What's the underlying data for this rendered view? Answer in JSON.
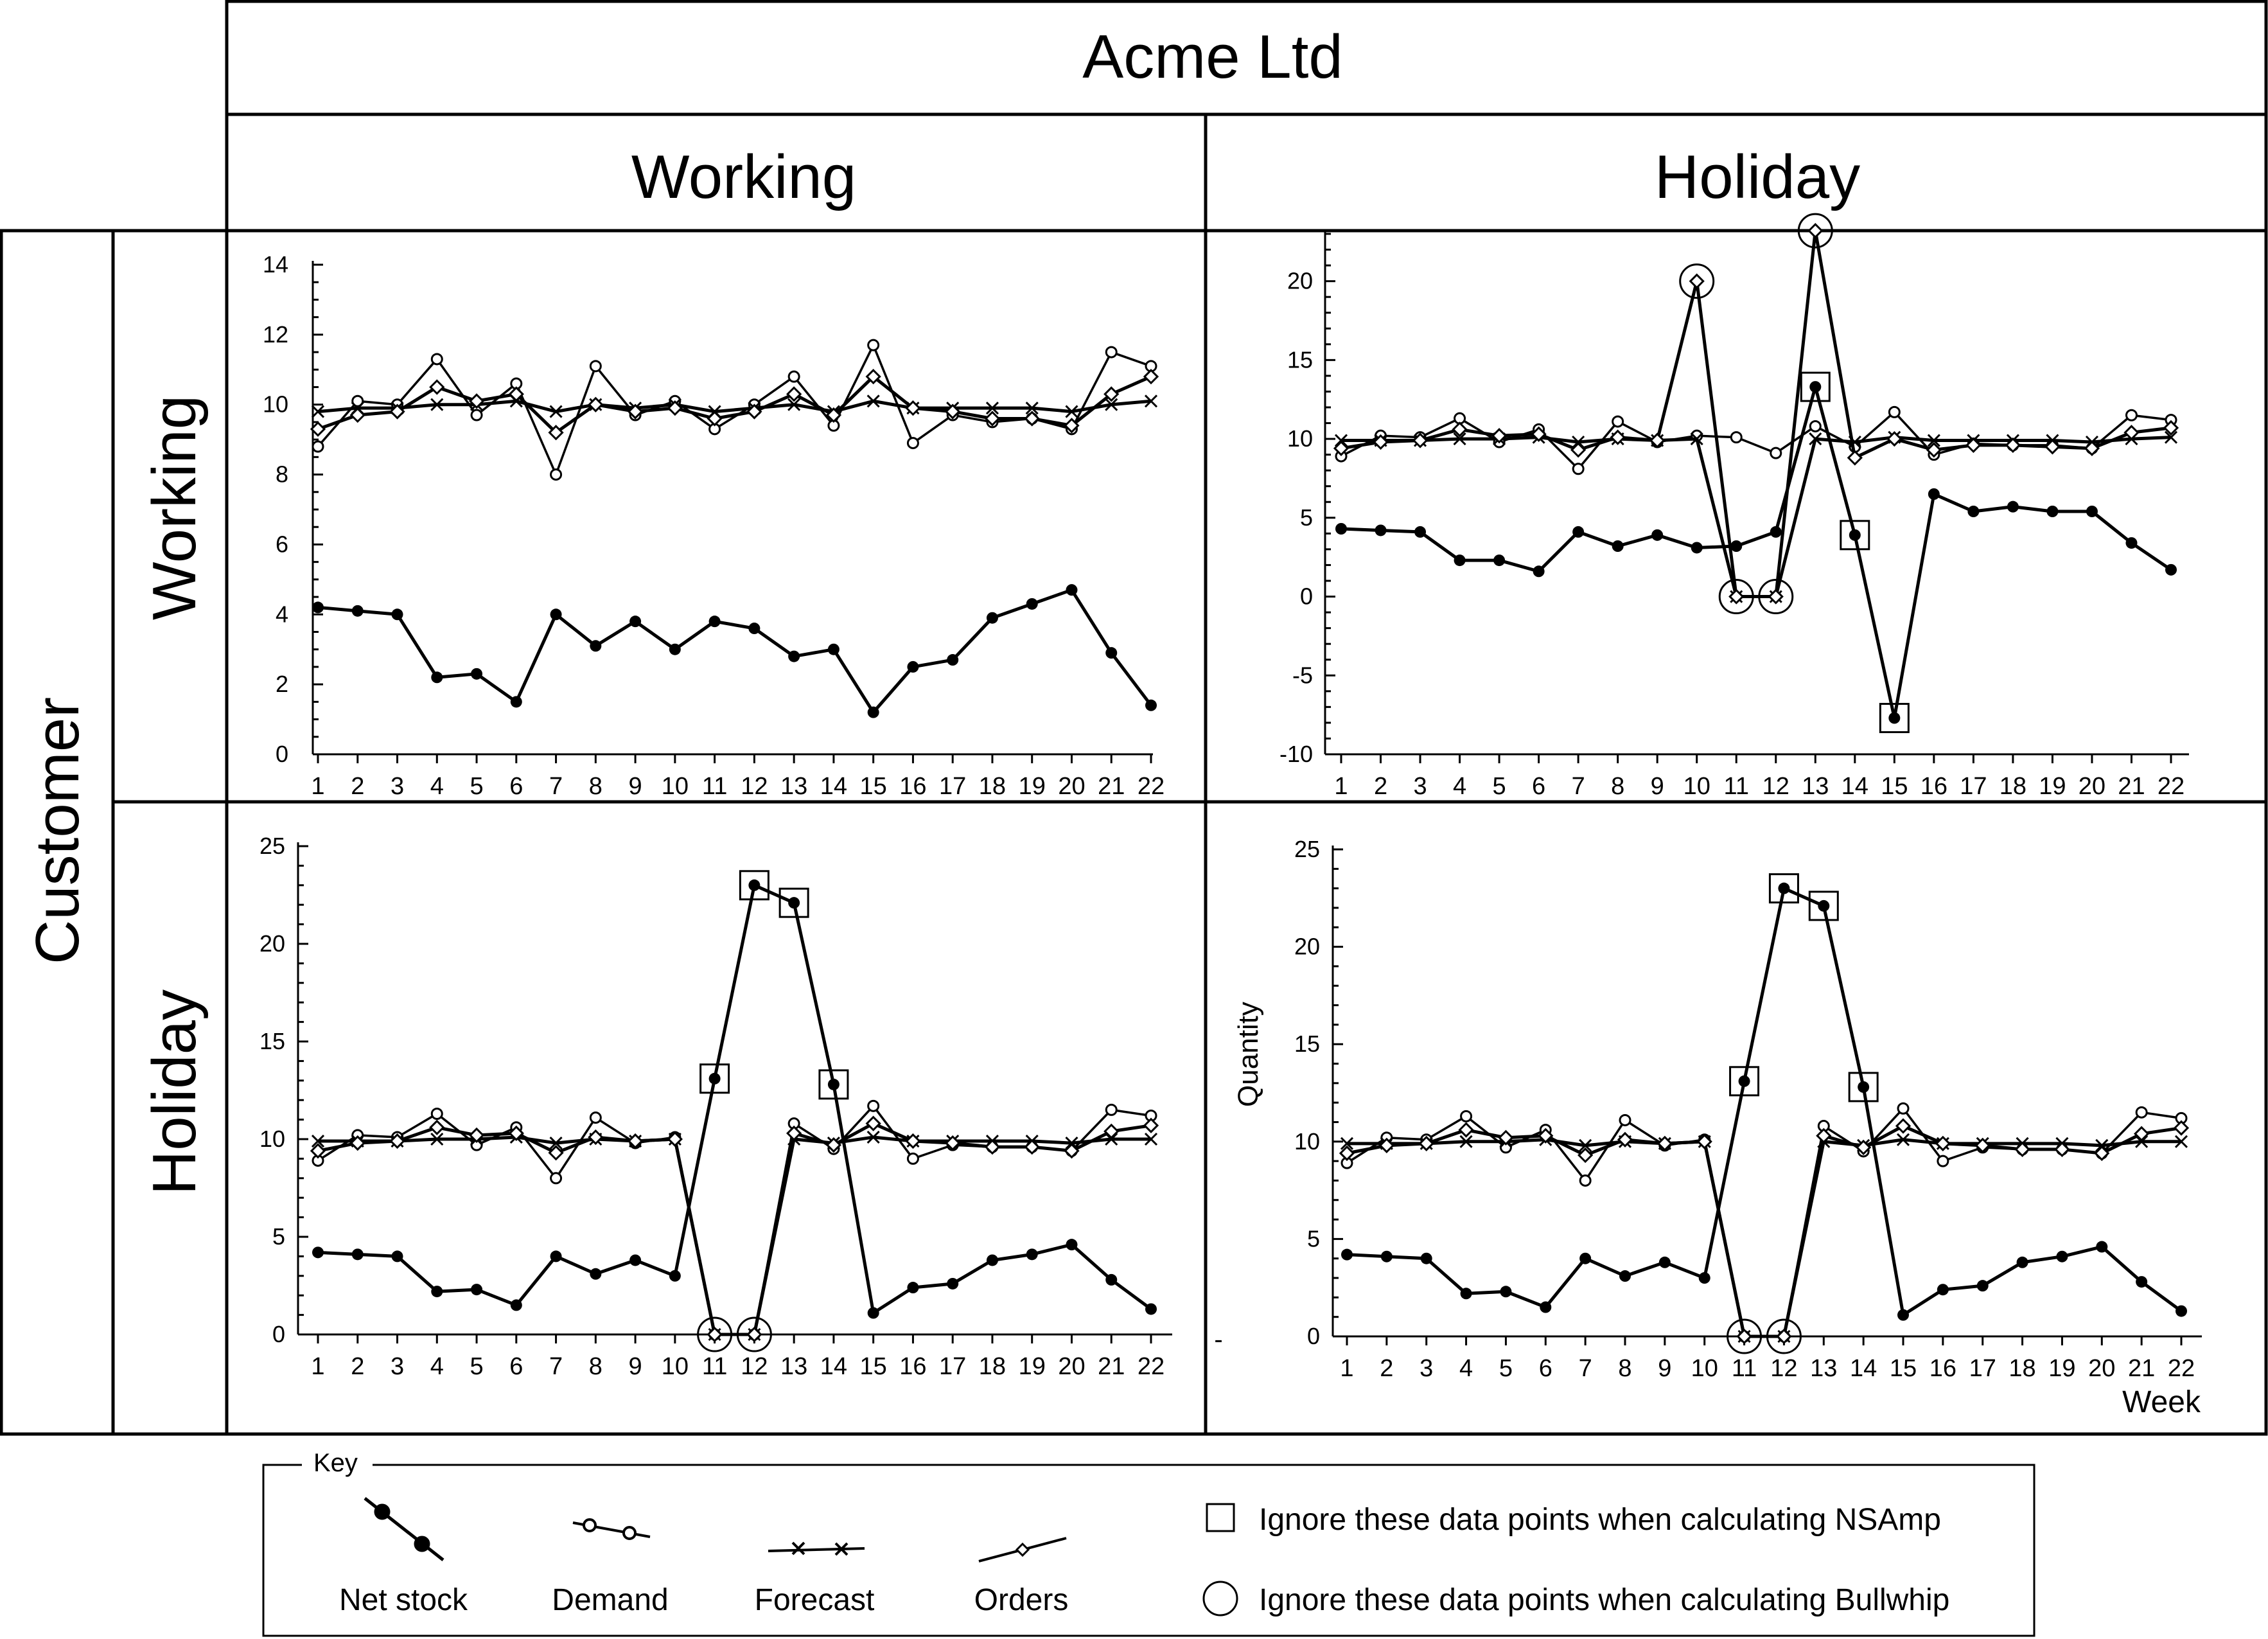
{
  "figure": {
    "company": "Acme Ltd",
    "col_headers": [
      "Working",
      "Holiday"
    ],
    "row_group_label": "Customer",
    "row_headers": [
      "Working",
      "Holiday"
    ],
    "stray_mark": "-"
  },
  "chart_data": [
    {
      "type": "line",
      "title": "Acme Ltd: Working / Customer: Working",
      "xlabel": "",
      "ylabel": "",
      "x": [
        1,
        2,
        3,
        4,
        5,
        6,
        7,
        8,
        9,
        10,
        11,
        12,
        13,
        14,
        15,
        16,
        17,
        18,
        19,
        20,
        21,
        22
      ],
      "ylim": [
        0,
        14
      ],
      "yticks": [
        0,
        2,
        4,
        6,
        8,
        10,
        12,
        14
      ],
      "series": [
        {
          "name": "Net stock",
          "values": [
            4.2,
            4.1,
            4.0,
            2.2,
            2.3,
            1.5,
            4.0,
            3.1,
            3.8,
            3.0,
            3.8,
            3.6,
            2.8,
            3.0,
            1.2,
            2.5,
            2.7,
            3.9,
            4.3,
            4.7,
            2.9,
            1.4
          ]
        },
        {
          "name": "Demand",
          "values": [
            8.8,
            10.1,
            10.0,
            11.3,
            9.7,
            10.6,
            8.0,
            11.1,
            9.7,
            10.1,
            9.3,
            10.0,
            10.8,
            9.4,
            11.7,
            8.9,
            9.7,
            9.5,
            9.6,
            9.3,
            11.5,
            11.1
          ]
        },
        {
          "name": "Forecast",
          "values": [
            9.8,
            9.9,
            9.9,
            10.0,
            10.0,
            10.1,
            9.8,
            10.0,
            9.9,
            10.0,
            9.8,
            9.9,
            10.0,
            9.8,
            10.1,
            9.9,
            9.9,
            9.9,
            9.9,
            9.8,
            10.0,
            10.1
          ]
        },
        {
          "name": "Orders",
          "values": [
            9.3,
            9.7,
            9.8,
            10.5,
            10.1,
            10.3,
            9.2,
            10.0,
            9.8,
            9.9,
            9.6,
            9.8,
            10.3,
            9.7,
            10.8,
            9.9,
            9.8,
            9.6,
            9.6,
            9.4,
            10.3,
            10.8
          ]
        }
      ],
      "squares": [],
      "circles": []
    },
    {
      "type": "line",
      "title": "Acme Ltd: Holiday / Customer: Working",
      "xlabel": "",
      "ylabel": "",
      "x": [
        1,
        2,
        3,
        4,
        5,
        6,
        7,
        8,
        9,
        10,
        11,
        12,
        13,
        14,
        15,
        16,
        17,
        18,
        19,
        20,
        21,
        22
      ],
      "ylim": [
        -10,
        23
      ],
      "yticks": [
        -10,
        -5,
        0,
        5,
        10,
        15,
        20
      ],
      "series": [
        {
          "name": "Net stock",
          "values": [
            4.3,
            4.2,
            4.1,
            2.3,
            2.3,
            1.6,
            4.1,
            3.2,
            3.9,
            3.1,
            3.2,
            4.1,
            13.3,
            3.9,
            -7.7,
            6.5,
            5.4,
            5.7,
            5.4,
            5.4,
            3.4,
            1.7
          ]
        },
        {
          "name": "Demand",
          "values": [
            8.9,
            10.2,
            10.1,
            11.3,
            9.8,
            10.6,
            8.1,
            11.1,
            9.8,
            10.2,
            10.1,
            9.1,
            10.8,
            9.5,
            11.7,
            9.0,
            9.7,
            9.6,
            9.6,
            9.4,
            11.5,
            11.2
          ]
        },
        {
          "name": "Forecast",
          "values": [
            9.9,
            9.9,
            9.9,
            10.0,
            10.0,
            10.1,
            9.8,
            10.0,
            9.9,
            10.0,
            0.0,
            0.0,
            10.0,
            9.8,
            10.1,
            9.9,
            9.9,
            9.9,
            9.9,
            9.8,
            10.0,
            10.1
          ]
        },
        {
          "name": "Orders",
          "values": [
            9.4,
            9.8,
            9.9,
            10.6,
            10.2,
            10.3,
            9.3,
            10.1,
            9.9,
            20.0,
            0.0,
            0.0,
            23.2,
            8.8,
            10.0,
            9.3,
            9.6,
            9.6,
            9.5,
            9.4,
            10.4,
            10.7
          ]
        }
      ],
      "squares": [
        {
          "x": 13,
          "y": 13.3
        },
        {
          "x": 14,
          "y": 3.9
        },
        {
          "x": 15,
          "y": -7.7
        }
      ],
      "circles": [
        {
          "x": 10,
          "y": 20.0
        },
        {
          "x": 11,
          "y": 0
        },
        {
          "x": 12,
          "y": 0
        },
        {
          "x": 13,
          "y": 23.2
        }
      ]
    },
    {
      "type": "line",
      "title": "Acme Ltd: Working / Customer: Holiday",
      "xlabel": "",
      "ylabel": "",
      "x": [
        1,
        2,
        3,
        4,
        5,
        6,
        7,
        8,
        9,
        10,
        11,
        12,
        13,
        14,
        15,
        16,
        17,
        18,
        19,
        20,
        21,
        22
      ],
      "ylim": [
        0,
        25
      ],
      "yticks": [
        0,
        5,
        10,
        15,
        20,
        25
      ],
      "series": [
        {
          "name": "Net stock",
          "values": [
            4.2,
            4.1,
            4.0,
            2.2,
            2.3,
            1.5,
            4.0,
            3.1,
            3.8,
            3.0,
            13.1,
            23.0,
            22.1,
            12.8,
            1.1,
            2.4,
            2.6,
            3.8,
            4.1,
            4.6,
            2.8,
            1.3
          ]
        },
        {
          "name": "Demand",
          "values": [
            8.9,
            10.2,
            10.1,
            11.3,
            9.7,
            10.6,
            8.0,
            11.1,
            9.8,
            10.1,
            0.0,
            0.0,
            10.8,
            9.5,
            11.7,
            9.0,
            9.7,
            9.6,
            9.6,
            9.4,
            11.5,
            11.2
          ]
        },
        {
          "name": "Forecast",
          "values": [
            9.9,
            9.9,
            9.9,
            10.0,
            10.0,
            10.1,
            9.8,
            10.0,
            9.9,
            10.0,
            0.0,
            0.0,
            10.0,
            9.8,
            10.1,
            9.9,
            9.9,
            9.9,
            9.9,
            9.8,
            10.0,
            10.0
          ]
        },
        {
          "name": "Orders",
          "values": [
            9.4,
            9.8,
            9.9,
            10.6,
            10.2,
            10.3,
            9.3,
            10.1,
            9.9,
            10.0,
            0.0,
            0.0,
            10.3,
            9.7,
            10.8,
            9.9,
            9.8,
            9.6,
            9.6,
            9.4,
            10.4,
            10.7
          ]
        }
      ],
      "squares": [
        {
          "x": 11,
          "y": 13.1
        },
        {
          "x": 12,
          "y": 23.0
        },
        {
          "x": 13,
          "y": 22.1
        },
        {
          "x": 14,
          "y": 12.8
        }
      ],
      "circles": [
        {
          "x": 11,
          "y": 0
        },
        {
          "x": 12,
          "y": 0
        }
      ]
    },
    {
      "type": "line",
      "title": "Acme Ltd: Holiday / Customer: Holiday",
      "xlabel": "Week",
      "ylabel": "Quantity",
      "x": [
        1,
        2,
        3,
        4,
        5,
        6,
        7,
        8,
        9,
        10,
        11,
        12,
        13,
        14,
        15,
        16,
        17,
        18,
        19,
        20,
        21,
        22
      ],
      "ylim": [
        0,
        25
      ],
      "yticks": [
        0,
        5,
        10,
        15,
        20,
        25
      ],
      "series": [
        {
          "name": "Net stock",
          "values": [
            4.2,
            4.1,
            4.0,
            2.2,
            2.3,
            1.5,
            4.0,
            3.1,
            3.8,
            3.0,
            13.1,
            23.0,
            22.1,
            12.8,
            1.1,
            2.4,
            2.6,
            3.8,
            4.1,
            4.6,
            2.8,
            1.3
          ]
        },
        {
          "name": "Demand",
          "values": [
            8.9,
            10.2,
            10.1,
            11.3,
            9.7,
            10.6,
            8.0,
            11.1,
            9.8,
            10.1,
            0.0,
            0.0,
            10.8,
            9.5,
            11.7,
            9.0,
            9.7,
            9.6,
            9.6,
            9.4,
            11.5,
            11.2
          ]
        },
        {
          "name": "Forecast",
          "values": [
            9.9,
            9.9,
            9.9,
            10.0,
            10.0,
            10.1,
            9.8,
            10.0,
            9.9,
            10.0,
            0.0,
            0.0,
            10.0,
            9.8,
            10.1,
            9.9,
            9.9,
            9.9,
            9.9,
            9.8,
            10.0,
            10.0
          ]
        },
        {
          "name": "Orders",
          "values": [
            9.4,
            9.8,
            9.9,
            10.6,
            10.2,
            10.3,
            9.3,
            10.1,
            9.9,
            10.0,
            0.0,
            0.0,
            10.3,
            9.7,
            10.8,
            9.9,
            9.8,
            9.6,
            9.6,
            9.4,
            10.4,
            10.7
          ]
        }
      ],
      "squares": [
        {
          "x": 11,
          "y": 13.1
        },
        {
          "x": 12,
          "y": 23.0
        },
        {
          "x": 13,
          "y": 22.1
        },
        {
          "x": 14,
          "y": 12.8
        }
      ],
      "circles": [
        {
          "x": 11,
          "y": 0
        },
        {
          "x": 12,
          "y": 0
        }
      ]
    }
  ],
  "legend": {
    "title": "Key",
    "items": [
      {
        "label": "Net stock",
        "marker": "filled-circle"
      },
      {
        "label": "Demand",
        "marker": "open-circle"
      },
      {
        "label": "Forecast",
        "marker": "cross"
      },
      {
        "label": "Orders",
        "marker": "diamond"
      }
    ],
    "notes": [
      {
        "symbol": "square-icon",
        "text": "Ignore these data points when calculating NSAmp"
      },
      {
        "symbol": "circle-icon",
        "text": "Ignore these data points when calculating Bullwhip"
      }
    ]
  }
}
